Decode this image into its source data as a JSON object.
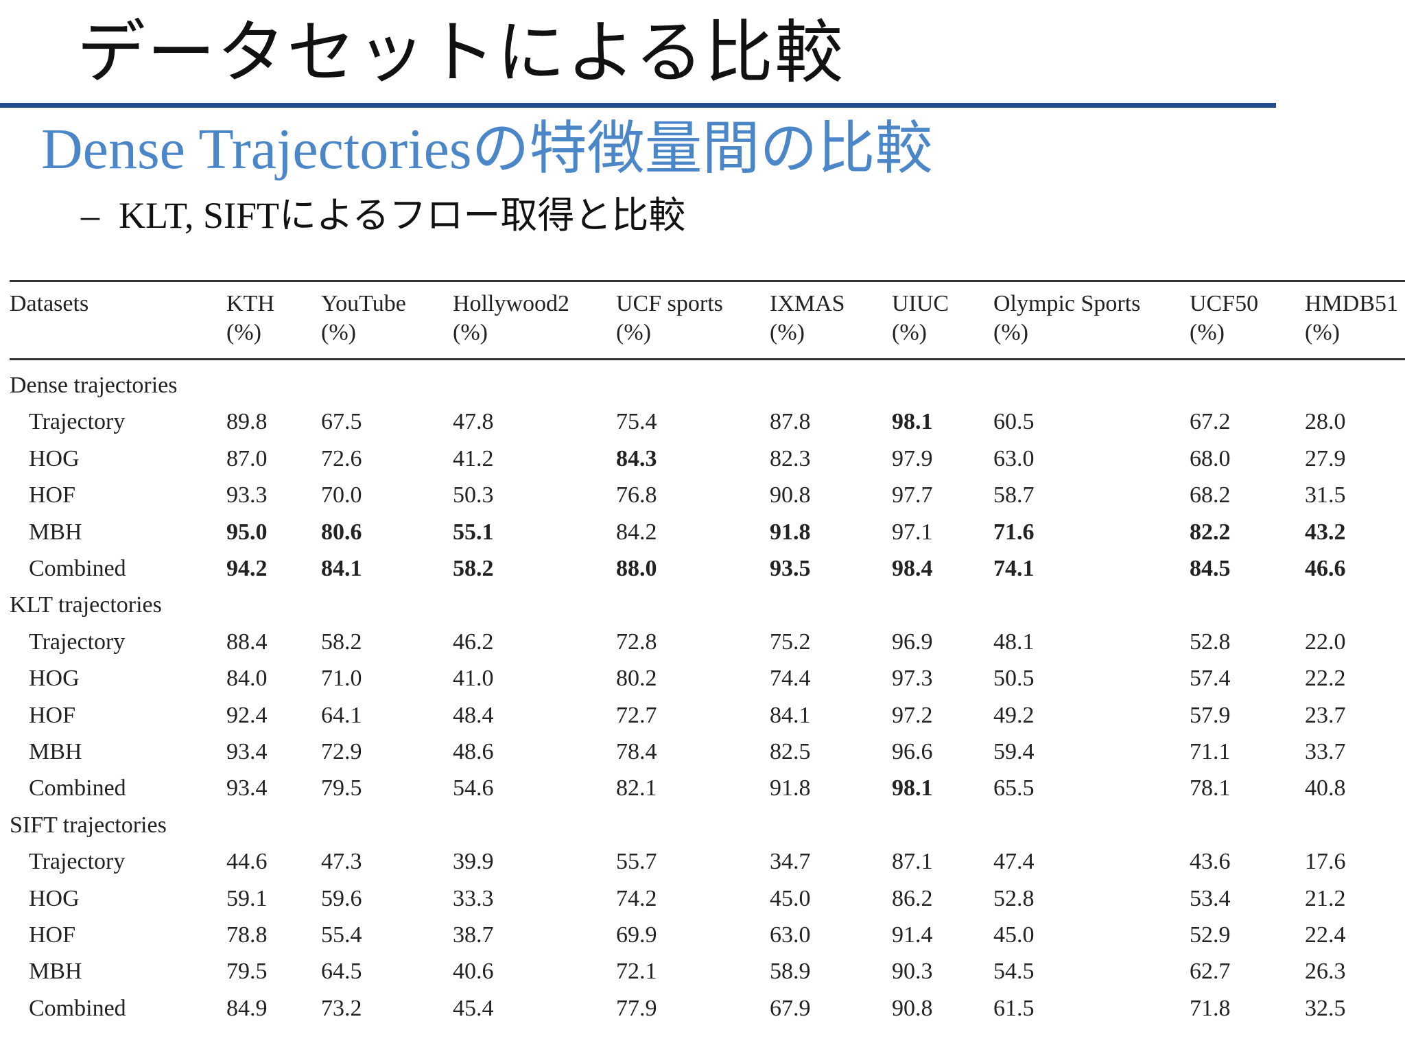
{
  "slide": {
    "title": "データセットによる比較",
    "subtitle": "Dense Trajectoriesの特徴量間の比較",
    "bullet_dash": "–",
    "bullet": "KLT, SIFTによるフロー取得と比較"
  },
  "table": {
    "header_label": "Datasets",
    "columns": [
      {
        "name": "KTH",
        "unit": "(%)"
      },
      {
        "name": "YouTube",
        "unit": "(%)"
      },
      {
        "name": "Hollywood2",
        "unit": "(%)"
      },
      {
        "name": "UCF sports",
        "unit": "(%)"
      },
      {
        "name": "IXMAS",
        "unit": "(%)"
      },
      {
        "name": "UIUC",
        "unit": "(%)"
      },
      {
        "name": "Olympic Sports",
        "unit": "(%)"
      },
      {
        "name": "UCF50",
        "unit": "(%)"
      },
      {
        "name": "HMDB51",
        "unit": "(%)"
      }
    ],
    "groups": [
      {
        "label": "Dense trajectories",
        "rows": [
          {
            "label": "Trajectory",
            "values": [
              "89.8",
              "67.5",
              "47.8",
              "75.4",
              "87.8",
              "98.1",
              "60.5",
              "67.2",
              "28.0"
            ],
            "bold": [
              false,
              false,
              false,
              false,
              false,
              true,
              false,
              false,
              false
            ]
          },
          {
            "label": "HOG",
            "values": [
              "87.0",
              "72.6",
              "41.2",
              "84.3",
              "82.3",
              "97.9",
              "63.0",
              "68.0",
              "27.9"
            ],
            "bold": [
              false,
              false,
              false,
              true,
              false,
              false,
              false,
              false,
              false
            ]
          },
          {
            "label": "HOF",
            "values": [
              "93.3",
              "70.0",
              "50.3",
              "76.8",
              "90.8",
              "97.7",
              "58.7",
              "68.2",
              "31.5"
            ],
            "bold": [
              false,
              false,
              false,
              false,
              false,
              false,
              false,
              false,
              false
            ]
          },
          {
            "label": "MBH",
            "values": [
              "95.0",
              "80.6",
              "55.1",
              "84.2",
              "91.8",
              "97.1",
              "71.6",
              "82.2",
              "43.2"
            ],
            "bold": [
              true,
              true,
              true,
              false,
              true,
              false,
              true,
              true,
              true
            ]
          },
          {
            "label": "Combined",
            "values": [
              "94.2",
              "84.1",
              "58.2",
              "88.0",
              "93.5",
              "98.4",
              "74.1",
              "84.5",
              "46.6"
            ],
            "bold": [
              true,
              true,
              true,
              true,
              true,
              true,
              true,
              true,
              true
            ]
          }
        ]
      },
      {
        "label": "KLT trajectories",
        "rows": [
          {
            "label": "Trajectory",
            "values": [
              "88.4",
              "58.2",
              "46.2",
              "72.8",
              "75.2",
              "96.9",
              "48.1",
              "52.8",
              "22.0"
            ],
            "bold": [
              false,
              false,
              false,
              false,
              false,
              false,
              false,
              false,
              false
            ]
          },
          {
            "label": "HOG",
            "values": [
              "84.0",
              "71.0",
              "41.0",
              "80.2",
              "74.4",
              "97.3",
              "50.5",
              "57.4",
              "22.2"
            ],
            "bold": [
              false,
              false,
              false,
              false,
              false,
              false,
              false,
              false,
              false
            ]
          },
          {
            "label": "HOF",
            "values": [
              "92.4",
              "64.1",
              "48.4",
              "72.7",
              "84.1",
              "97.2",
              "49.2",
              "57.9",
              "23.7"
            ],
            "bold": [
              false,
              false,
              false,
              false,
              false,
              false,
              false,
              false,
              false
            ]
          },
          {
            "label": "MBH",
            "values": [
              "93.4",
              "72.9",
              "48.6",
              "78.4",
              "82.5",
              "96.6",
              "59.4",
              "71.1",
              "33.7"
            ],
            "bold": [
              false,
              false,
              false,
              false,
              false,
              false,
              false,
              false,
              false
            ]
          },
          {
            "label": "Combined",
            "values": [
              "93.4",
              "79.5",
              "54.6",
              "82.1",
              "91.8",
              "98.1",
              "65.5",
              "78.1",
              "40.8"
            ],
            "bold": [
              false,
              false,
              false,
              false,
              false,
              true,
              false,
              false,
              false
            ]
          }
        ]
      },
      {
        "label": "SIFT trajectories",
        "rows": [
          {
            "label": "Trajectory",
            "values": [
              "44.6",
              "47.3",
              "39.9",
              "55.7",
              "34.7",
              "87.1",
              "47.4",
              "43.6",
              "17.6"
            ],
            "bold": [
              false,
              false,
              false,
              false,
              false,
              false,
              false,
              false,
              false
            ]
          },
          {
            "label": "HOG",
            "values": [
              "59.1",
              "59.6",
              "33.3",
              "74.2",
              "45.0",
              "86.2",
              "52.8",
              "53.4",
              "21.2"
            ],
            "bold": [
              false,
              false,
              false,
              false,
              false,
              false,
              false,
              false,
              false
            ]
          },
          {
            "label": "HOF",
            "values": [
              "78.8",
              "55.4",
              "38.7",
              "69.9",
              "63.0",
              "91.4",
              "45.0",
              "52.9",
              "22.4"
            ],
            "bold": [
              false,
              false,
              false,
              false,
              false,
              false,
              false,
              false,
              false
            ]
          },
          {
            "label": "MBH",
            "values": [
              "79.5",
              "64.5",
              "40.6",
              "72.1",
              "58.9",
              "90.3",
              "54.5",
              "62.7",
              "26.3"
            ],
            "bold": [
              false,
              false,
              false,
              false,
              false,
              false,
              false,
              false,
              false
            ]
          },
          {
            "label": "Combined",
            "values": [
              "84.9",
              "73.2",
              "45.4",
              "77.9",
              "67.9",
              "90.8",
              "61.5",
              "71.8",
              "32.5"
            ],
            "bold": [
              false,
              false,
              false,
              false,
              false,
              false,
              false,
              false,
              false
            ]
          }
        ]
      }
    ]
  }
}
